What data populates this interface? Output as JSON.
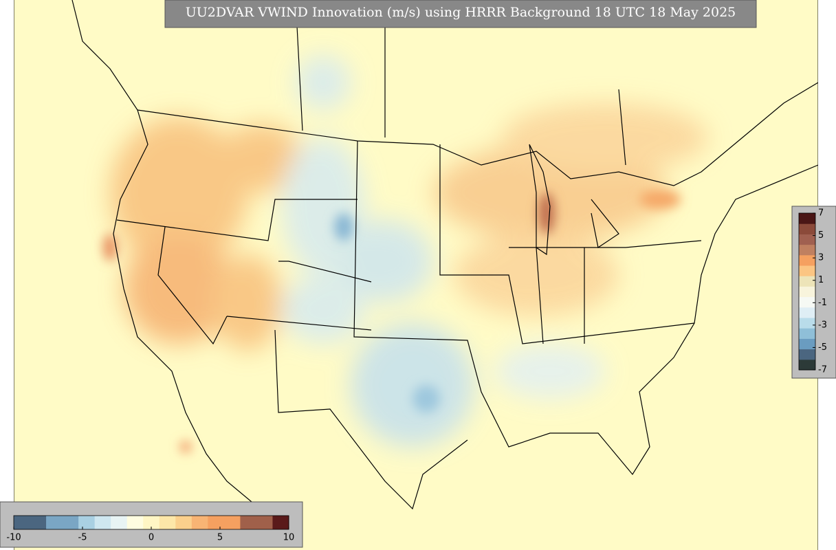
{
  "title": "UU2DVAR VWIND Innovation (m/s) using HRRR Background 18 UTC 18 May 2025",
  "colorbars": [
    {
      "orientation": "horizontal",
      "range": [
        -10,
        10
      ],
      "ticks": [
        -10,
        -5,
        0,
        5,
        10
      ],
      "colors": [
        "#4b6680",
        "#4b6680",
        "#7aa6c4",
        "#7aa6c4",
        "#a9d0e2",
        "#cfe7f0",
        "#e8f4f4",
        "#fffde0",
        "#fff6c4",
        "#fde7a8",
        "#fbd08c",
        "#f8b474",
        "#f5a060",
        "#f5a060",
        "#a0604a",
        "#a0604a",
        "#5a1a1a"
      ]
    },
    {
      "orientation": "vertical",
      "range": [
        -7,
        7
      ],
      "ticks": [
        7,
        5,
        3,
        1,
        -1,
        -3,
        -5,
        -7
      ],
      "colors": [
        "#2c3a38",
        "#4b6680",
        "#6a9cc0",
        "#8fbfd8",
        "#b9dcea",
        "#dfeef5",
        "#f6f9f4",
        "#f8f4dc",
        "#ede4b8",
        "#fbc583",
        "#f5a060",
        "#c08060",
        "#a06050",
        "#8b4a3a",
        "#4a1616"
      ]
    }
  ]
}
